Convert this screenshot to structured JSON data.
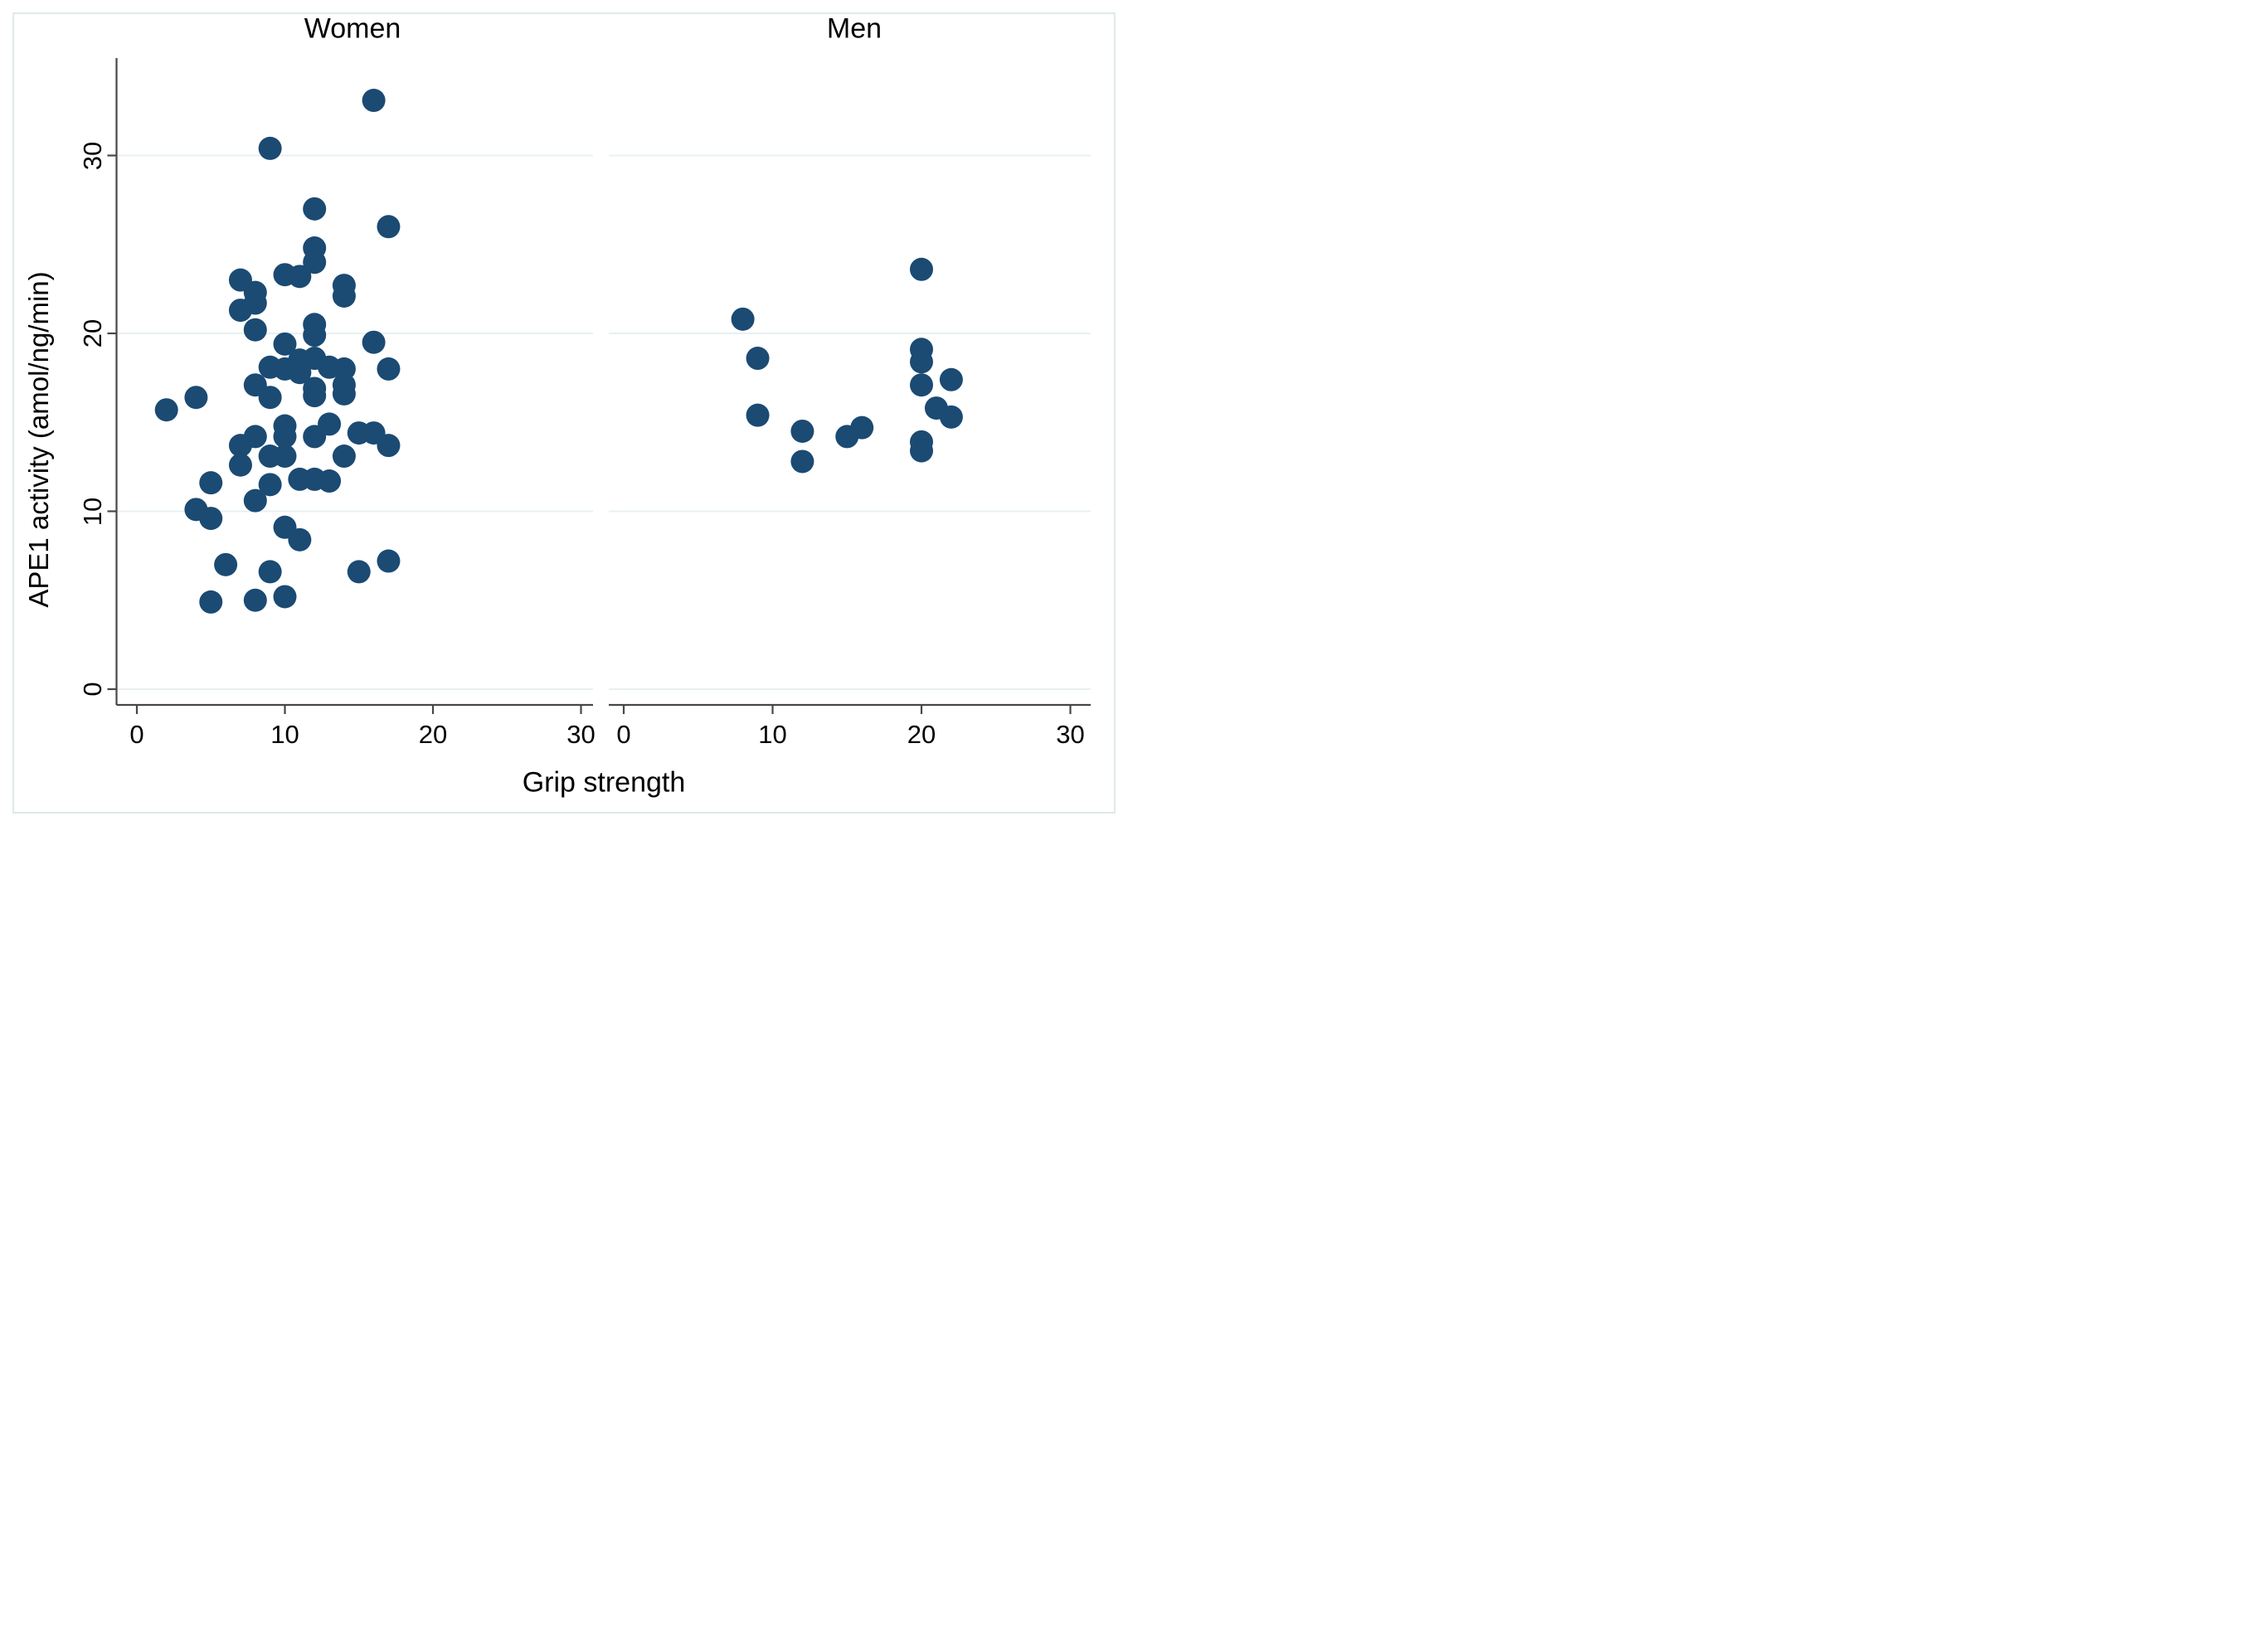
{
  "figure": {
    "background_color": "#ffffff",
    "border_color": "#dfeae9",
    "point_color": "#1b4a73",
    "gridline_color": "#e8f1f0",
    "axis_color": "#474747",
    "text_color": "#000000"
  },
  "chart_data": {
    "type": "scatter",
    "title": "",
    "xlabel": "Grip strength",
    "ylabel": "APE1 activity (amol/ng/min)",
    "x_ticks": [
      0,
      10,
      20,
      30
    ],
    "y_ticks": [
      0,
      10,
      20,
      30
    ],
    "xlim": [
      -1.4,
      30.9
    ],
    "ylim": [
      -0.9,
      35.5
    ],
    "grid": "horizontal gridlines at y ticks",
    "legend": "none",
    "panels": [
      {
        "label": "Women",
        "points": [
          [
            2,
            15.7
          ],
          [
            4,
            16.4
          ],
          [
            4,
            10.1
          ],
          [
            5,
            11.6
          ],
          [
            5,
            9.6
          ],
          [
            5,
            4.9
          ],
          [
            6,
            7.0
          ],
          [
            7,
            23.0
          ],
          [
            7,
            21.3
          ],
          [
            7,
            13.7
          ],
          [
            7,
            12.6
          ],
          [
            8,
            22.3
          ],
          [
            8,
            21.7
          ],
          [
            8,
            20.2
          ],
          [
            8,
            17.1
          ],
          [
            8,
            14.2
          ],
          [
            8,
            10.6
          ],
          [
            8,
            5.0
          ],
          [
            9,
            30.4
          ],
          [
            9,
            18.1
          ],
          [
            9,
            16.4
          ],
          [
            9,
            13.1
          ],
          [
            9,
            11.5
          ],
          [
            9,
            6.6
          ],
          [
            10,
            23.3
          ],
          [
            10,
            19.4
          ],
          [
            10,
            18.0
          ],
          [
            10,
            14.8
          ],
          [
            10,
            14.2
          ],
          [
            10,
            13.1
          ],
          [
            10,
            9.1
          ],
          [
            10,
            5.2
          ],
          [
            11,
            23.2
          ],
          [
            11,
            18.5
          ],
          [
            11,
            17.8
          ],
          [
            11,
            11.8
          ],
          [
            11,
            8.4
          ],
          [
            12,
            27.0
          ],
          [
            12,
            24.8
          ],
          [
            12,
            24.0
          ],
          [
            12,
            20.5
          ],
          [
            12,
            19.9
          ],
          [
            12,
            18.6
          ],
          [
            12,
            16.9
          ],
          [
            12,
            16.5
          ],
          [
            12,
            14.2
          ],
          [
            12,
            11.8
          ],
          [
            13,
            18.1
          ],
          [
            13,
            14.9
          ],
          [
            13,
            11.7
          ],
          [
            14,
            22.7
          ],
          [
            14,
            22.1
          ],
          [
            14,
            18.0
          ],
          [
            14,
            17.1
          ],
          [
            14,
            16.6
          ],
          [
            14,
            13.1
          ],
          [
            15,
            14.4
          ],
          [
            15,
            6.6
          ],
          [
            16,
            33.1
          ],
          [
            16,
            19.5
          ],
          [
            16,
            14.4
          ],
          [
            17,
            26.0
          ],
          [
            17,
            18.0
          ],
          [
            17,
            13.7
          ],
          [
            17,
            7.2
          ]
        ]
      },
      {
        "label": "Men",
        "points": [
          [
            8,
            20.8
          ],
          [
            9,
            18.6
          ],
          [
            9,
            15.4
          ],
          [
            12,
            14.5
          ],
          [
            12,
            12.8
          ],
          [
            15,
            14.2
          ],
          [
            16,
            14.7
          ],
          [
            20,
            23.6
          ],
          [
            20,
            19.1
          ],
          [
            20,
            18.4
          ],
          [
            20,
            17.1
          ],
          [
            20,
            13.9
          ],
          [
            20,
            13.4
          ],
          [
            21,
            15.8
          ],
          [
            22,
            17.4
          ],
          [
            22,
            15.3
          ]
        ]
      }
    ]
  }
}
